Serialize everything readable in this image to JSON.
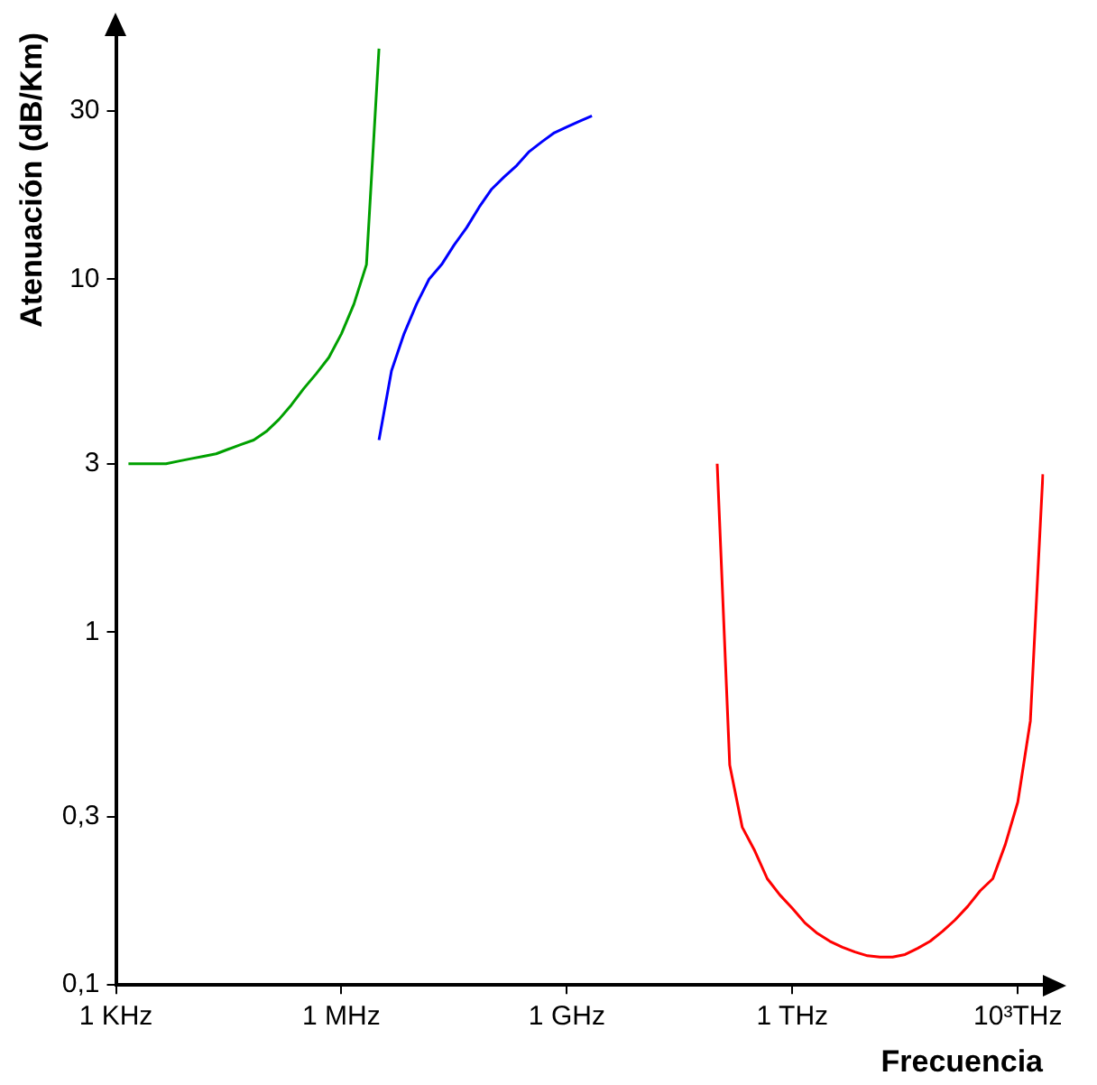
{
  "chart_data": {
    "type": "line",
    "xlabel": "Frecuencia",
    "ylabel": "Atenuación (dB/Km)",
    "log": "y",
    "grid": false,
    "legend": false,
    "marker": "none",
    "line_style": "solid",
    "ylim": [
      0.1,
      50
    ],
    "yticks": [
      {
        "value": 0.1,
        "label": "0,1"
      },
      {
        "value": 0.3,
        "label": "0,3"
      },
      1,
      3,
      10,
      30
    ],
    "categories": [
      "1 KHz",
      null,
      null,
      null,
      null,
      null,
      null,
      null,
      null,
      null,
      null,
      null,
      null,
      null,
      null,
      null,
      null,
      null,
      "1 MHz",
      null,
      null,
      null,
      null,
      null,
      null,
      null,
      null,
      null,
      null,
      null,
      null,
      null,
      null,
      null,
      null,
      null,
      "1 GHz",
      null,
      null,
      null,
      null,
      null,
      null,
      null,
      null,
      null,
      null,
      null,
      null,
      null,
      null,
      null,
      null,
      null,
      "1 THz",
      null,
      null,
      null,
      null,
      null,
      null,
      null,
      null,
      null,
      null,
      null,
      null,
      null,
      null,
      null,
      null,
      null,
      "10³THz",
      null,
      null
    ],
    "series": [
      {
        "color": "#00a000",
        "values": [
          null,
          3,
          3,
          3,
          3,
          3.05,
          3.1,
          3.15,
          3.2,
          3.3,
          3.4,
          3.5,
          3.7,
          4,
          4.4,
          4.9,
          5.4,
          6,
          7,
          8.5,
          11,
          45,
          null,
          null,
          null,
          null,
          null,
          null,
          null,
          null,
          null,
          null,
          null,
          null,
          null,
          null,
          null,
          null,
          null,
          null,
          null,
          null,
          null,
          null,
          null,
          null,
          null,
          null,
          null,
          null,
          null,
          null,
          null,
          null,
          null,
          null,
          null,
          null,
          null,
          null,
          null,
          null,
          null,
          null,
          null,
          null,
          null,
          null,
          null,
          null,
          null,
          null,
          null,
          null,
          null
        ]
      },
      {
        "color": "#0000ff",
        "values": [
          null,
          null,
          null,
          null,
          null,
          null,
          null,
          null,
          null,
          null,
          null,
          null,
          null,
          null,
          null,
          null,
          null,
          null,
          null,
          null,
          null,
          3.5,
          5.5,
          7,
          8.5,
          10,
          11,
          12.5,
          14,
          16,
          18,
          19.5,
          21,
          23,
          24.5,
          26,
          27,
          28,
          29,
          null,
          null,
          null,
          null,
          null,
          null,
          null,
          null,
          null,
          null,
          null,
          null,
          null,
          null,
          null,
          null,
          null,
          null,
          null,
          null,
          null,
          null,
          null,
          null,
          null,
          null,
          null,
          null,
          null,
          null,
          null,
          null,
          null,
          null,
          null,
          null
        ]
      },
      {
        "color": "#ff0000",
        "values": [
          null,
          null,
          null,
          null,
          null,
          null,
          null,
          null,
          null,
          null,
          null,
          null,
          null,
          null,
          null,
          null,
          null,
          null,
          null,
          null,
          null,
          null,
          null,
          null,
          null,
          null,
          null,
          null,
          null,
          null,
          null,
          null,
          null,
          null,
          null,
          null,
          null,
          null,
          null,
          null,
          null,
          null,
          null,
          null,
          null,
          null,
          null,
          null,
          3.0,
          0.42,
          0.28,
          0.24,
          0.2,
          0.18,
          0.165,
          0.15,
          0.14,
          0.133,
          0.128,
          0.124,
          0.121,
          0.12,
          0.12,
          0.122,
          0.127,
          0.133,
          0.142,
          0.153,
          0.167,
          0.185,
          0.2,
          0.25,
          0.33,
          0.56,
          2.8
        ]
      }
    ]
  }
}
